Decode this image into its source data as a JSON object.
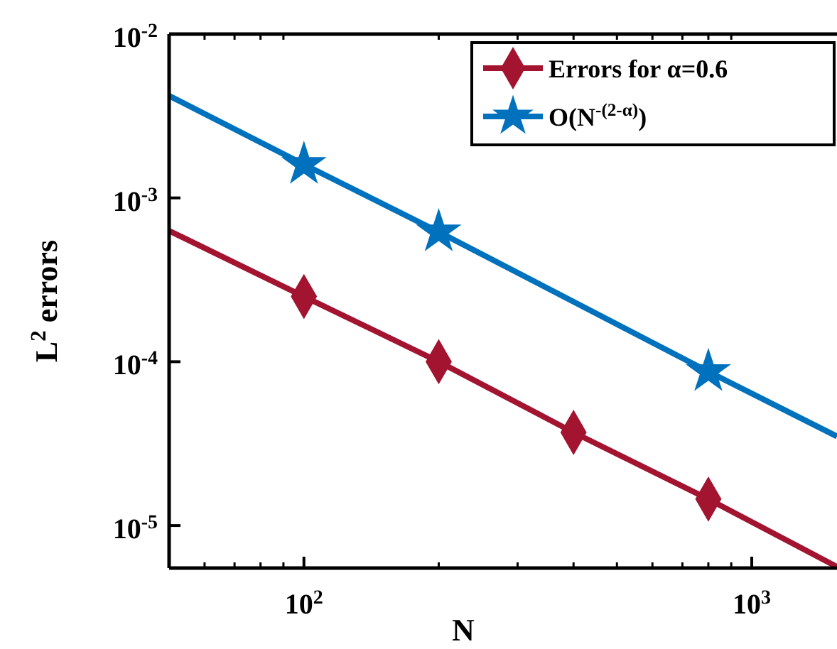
{
  "chart_data": {
    "type": "line",
    "xlabel": "N",
    "ylabel": "L$^{2}$ errors",
    "log": "xy",
    "grid": false,
    "legend": "top right",
    "xlim": [
      50,
      1550
    ],
    "xticks": [
      {
        "value": 100,
        "label": "10$^{2}$"
      },
      {
        "value": 1000,
        "label": "10$^{3}$"
      }
    ],
    "ylim": [
      5.5e-06,
      0.01
    ],
    "yticks": [
      {
        "value": 1e-05,
        "label": "10$^{-5}$"
      },
      {
        "value": 0.0001,
        "label": "10$^{-4}$"
      },
      {
        "value": 0.001,
        "label": "10$^{-3}$"
      },
      {
        "value": 0.01,
        "label": "10$^{-2}$"
      }
    ],
    "series": [
      {
        "name": "Errors for α=0.6",
        "color": "#a2142f",
        "x": [
          50,
          100,
          200,
          400,
          800,
          1550
        ],
        "values": [
          0.00063,
          0.00025,
          0.0001,
          3.7e-05,
          1.45e-05,
          5.6e-06
        ],
        "marker": "none"
      },
      {
        "type": "scatter",
        "color": "#a2142f",
        "x": [
          100,
          200,
          400,
          800
        ],
        "values": [
          0.00025,
          0.0001,
          3.7e-05,
          1.45e-05
        ],
        "marker": "diamond"
      },
      {
        "name": "O(N$^{-(2-α)}$)",
        "color": "#0072bd",
        "x": [
          50,
          100,
          200,
          800,
          1550
        ],
        "values": [
          0.0042,
          0.0016,
          0.00062,
          8.7e-05,
          3.5e-05
        ],
        "marker": "none"
      },
      {
        "type": "scatter",
        "color": "#0072bd",
        "x": [
          100,
          200,
          800
        ],
        "values": [
          0.0016,
          0.00062,
          8.7e-05
        ],
        "marker": "star"
      }
    ]
  }
}
